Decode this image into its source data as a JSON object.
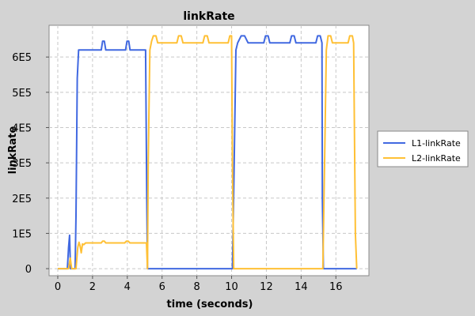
{
  "chart_data": {
    "type": "line",
    "title": "linkRate",
    "xlabel": "time (seconds)",
    "ylabel": "linkRate",
    "xlim": [
      -0.5,
      17.9
    ],
    "ylim": [
      -20000,
      690000
    ],
    "xticks": [
      0,
      2,
      4,
      6,
      8,
      10,
      12,
      14,
      16
    ],
    "xtick_labels": [
      "0",
      "2",
      "4",
      "6",
      "8",
      "10",
      "12",
      "14",
      "16"
    ],
    "yticks": [
      0,
      100000,
      200000,
      300000,
      400000,
      500000,
      600000
    ],
    "ytick_labels": [
      "0",
      "1E5",
      "2E5",
      "3E5",
      "4E5",
      "5E5",
      "6E5"
    ],
    "grid": true,
    "legend_position": "right",
    "series": [
      {
        "name": "L1-linkRate",
        "color": "#4169e1",
        "points": [
          [
            0.0,
            0
          ],
          [
            0.55,
            0
          ],
          [
            0.62,
            60000
          ],
          [
            0.68,
            95000
          ],
          [
            0.73,
            0
          ],
          [
            1.0,
            0
          ],
          [
            1.05,
            150000
          ],
          [
            1.12,
            540000
          ],
          [
            1.2,
            620000
          ],
          [
            2.5,
            620000
          ],
          [
            2.58,
            645000
          ],
          [
            2.68,
            645000
          ],
          [
            2.76,
            620000
          ],
          [
            3.9,
            620000
          ],
          [
            3.98,
            645000
          ],
          [
            4.08,
            645000
          ],
          [
            4.16,
            620000
          ],
          [
            5.05,
            620000
          ],
          [
            5.12,
            200000
          ],
          [
            5.16,
            0
          ],
          [
            10.05,
            0
          ],
          [
            10.15,
            300000
          ],
          [
            10.25,
            620000
          ],
          [
            10.35,
            640000
          ],
          [
            10.55,
            660000
          ],
          [
            10.75,
            660000
          ],
          [
            10.95,
            640000
          ],
          [
            11.85,
            640000
          ],
          [
            11.95,
            660000
          ],
          [
            12.1,
            660000
          ],
          [
            12.2,
            640000
          ],
          [
            13.35,
            640000
          ],
          [
            13.45,
            660000
          ],
          [
            13.6,
            660000
          ],
          [
            13.7,
            640000
          ],
          [
            14.85,
            640000
          ],
          [
            14.95,
            660000
          ],
          [
            15.1,
            660000
          ],
          [
            15.2,
            640000
          ],
          [
            15.22,
            200000
          ],
          [
            15.28,
            0
          ],
          [
            17.2,
            0
          ]
        ]
      },
      {
        "name": "L2-linkRate",
        "color": "#ffc035",
        "points": [
          [
            0.0,
            0
          ],
          [
            0.62,
            0
          ],
          [
            0.72,
            30000
          ],
          [
            0.8,
            0
          ],
          [
            1.05,
            0
          ],
          [
            1.15,
            60000
          ],
          [
            1.22,
            75000
          ],
          [
            1.28,
            65000
          ],
          [
            1.35,
            45000
          ],
          [
            1.42,
            70000
          ],
          [
            1.5,
            68000
          ],
          [
            1.6,
            73000
          ],
          [
            2.5,
            73000
          ],
          [
            2.58,
            78000
          ],
          [
            2.68,
            78000
          ],
          [
            2.76,
            73000
          ],
          [
            3.85,
            73000
          ],
          [
            3.95,
            78000
          ],
          [
            4.05,
            78000
          ],
          [
            4.15,
            73000
          ],
          [
            5.1,
            73000
          ],
          [
            5.16,
            0
          ],
          [
            5.2,
            300000
          ],
          [
            5.3,
            620000
          ],
          [
            5.4,
            645000
          ],
          [
            5.5,
            660000
          ],
          [
            5.65,
            660000
          ],
          [
            5.75,
            640000
          ],
          [
            6.85,
            640000
          ],
          [
            6.95,
            660000
          ],
          [
            7.1,
            660000
          ],
          [
            7.2,
            640000
          ],
          [
            8.35,
            640000
          ],
          [
            8.45,
            660000
          ],
          [
            8.6,
            660000
          ],
          [
            8.7,
            640000
          ],
          [
            9.8,
            640000
          ],
          [
            9.9,
            660000
          ],
          [
            10.0,
            660000
          ],
          [
            10.05,
            300000
          ],
          [
            10.12,
            0
          ],
          [
            15.25,
            0
          ],
          [
            15.35,
            300000
          ],
          [
            15.45,
            620000
          ],
          [
            15.55,
            660000
          ],
          [
            15.7,
            660000
          ],
          [
            15.8,
            640000
          ],
          [
            16.7,
            640000
          ],
          [
            16.8,
            660000
          ],
          [
            16.95,
            660000
          ],
          [
            17.02,
            640000
          ],
          [
            17.12,
            100000
          ],
          [
            17.2,
            0
          ]
        ]
      }
    ]
  }
}
